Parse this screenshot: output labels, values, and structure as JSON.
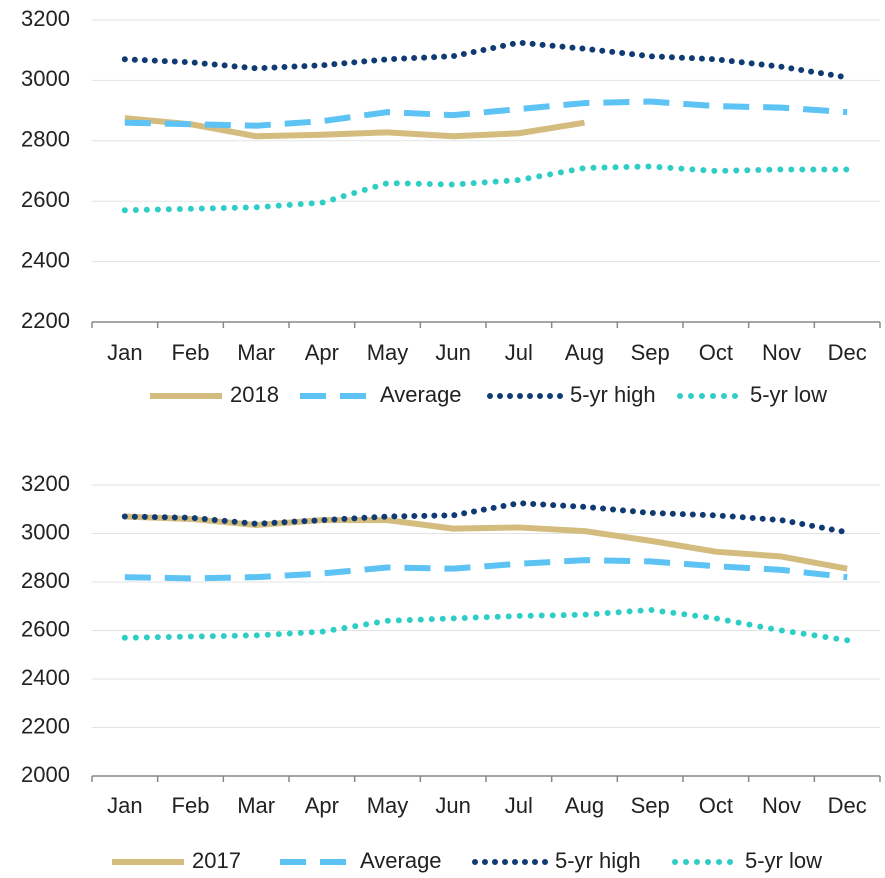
{
  "chart_data": [
    {
      "type": "line",
      "categories": [
        "Jan",
        "Feb",
        "Mar",
        "Apr",
        "May",
        "Jun",
        "Jul",
        "Aug",
        "Sep",
        "Oct",
        "Nov",
        "Dec"
      ],
      "ylim": [
        2200,
        3200
      ],
      "yticks": [
        2200,
        2400,
        2600,
        2800,
        3000,
        3200
      ],
      "grid": true,
      "series": [
        {
          "name": "2018",
          "color": "#d4bc7e",
          "values": [
            2875,
            2855,
            2815,
            2820,
            2828,
            2815,
            2825,
            2860,
            null,
            null,
            null,
            null
          ]
        },
        {
          "name": "Average",
          "color": "#5cc3f4",
          "values": [
            2860,
            2855,
            2850,
            2865,
            2895,
            2885,
            2905,
            2925,
            2930,
            2915,
            2910,
            2895
          ]
        },
        {
          "name": "5-yr high",
          "color": "#0f3a73",
          "values": [
            3070,
            3060,
            3040,
            3050,
            3070,
            3080,
            3125,
            3105,
            3080,
            3070,
            3045,
            3010
          ]
        },
        {
          "name": "5-yr low",
          "color": "#2ecdc6",
          "values": [
            2570,
            2575,
            2580,
            2595,
            2660,
            2655,
            2670,
            2710,
            2715,
            2700,
            2705,
            2705
          ]
        }
      ]
    },
    {
      "type": "line",
      "categories": [
        "Jan",
        "Feb",
        "Mar",
        "Apr",
        "May",
        "Jun",
        "Jul",
        "Aug",
        "Sep",
        "Oct",
        "Nov",
        "Dec"
      ],
      "ylim": [
        2000,
        3200
      ],
      "yticks": [
        2000,
        2200,
        2400,
        2600,
        2800,
        3000,
        3200
      ],
      "grid": true,
      "series": [
        {
          "name": "2017",
          "color": "#d4bc7e",
          "values": [
            3070,
            3060,
            3035,
            3055,
            3055,
            3020,
            3025,
            3010,
            2970,
            2925,
            2905,
            2855
          ]
        },
        {
          "name": "Average",
          "color": "#5cc3f4",
          "values": [
            2820,
            2815,
            2820,
            2835,
            2860,
            2855,
            2875,
            2890,
            2885,
            2865,
            2850,
            2820
          ]
        },
        {
          "name": "5-yr high",
          "color": "#0f3a73",
          "values": [
            3070,
            3065,
            3040,
            3055,
            3070,
            3075,
            3125,
            3110,
            3085,
            3075,
            3055,
            3005
          ]
        },
        {
          "name": "5-yr low",
          "color": "#2ecdc6",
          "values": [
            2570,
            2575,
            2580,
            2595,
            2640,
            2650,
            2660,
            2665,
            2685,
            2650,
            2600,
            2560
          ]
        }
      ]
    }
  ]
}
